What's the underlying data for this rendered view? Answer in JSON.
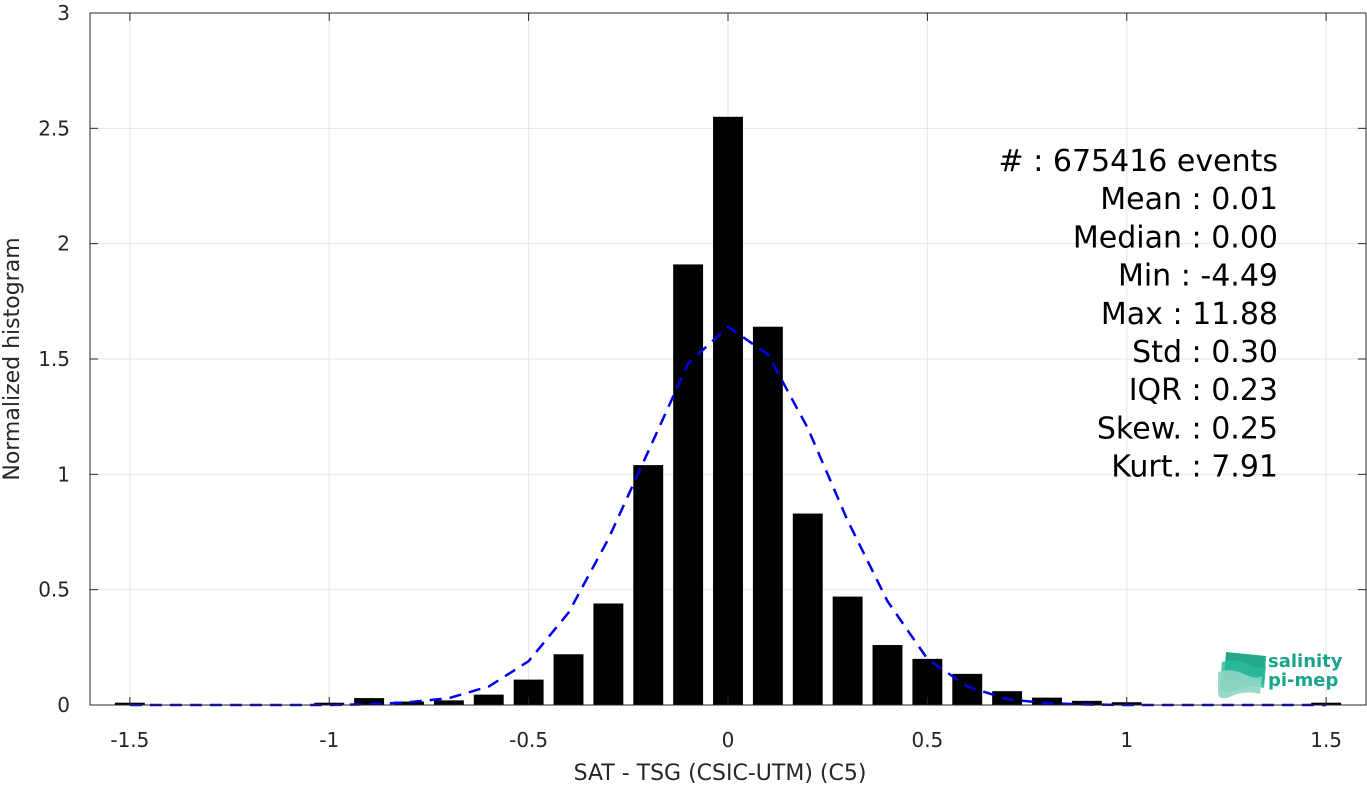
{
  "chart_data": {
    "type": "bar",
    "xlabel": "SAT - TSG (CSIC-UTM) (C5)",
    "ylabel": "Normalized histogram",
    "xlim": [
      -1.6,
      1.6
    ],
    "ylim": [
      0,
      3
    ],
    "xticks": [
      -1.5,
      -1,
      -0.5,
      0,
      0.5,
      1,
      1.5
    ],
    "xtick_labels": [
      "-1.5",
      "-1",
      "-0.5",
      "0",
      "0.5",
      "1",
      "1.5"
    ],
    "yticks": [
      0,
      0.5,
      1,
      1.5,
      2,
      2.5,
      3
    ],
    "ytick_labels": [
      "0",
      "0.5",
      "1",
      "1.5",
      "2",
      "2.5",
      "3"
    ],
    "grid": true,
    "bar_color": "#000000",
    "bar_width": 0.075,
    "bars": {
      "x": [
        -1.5,
        -1.0,
        -0.9,
        -0.8,
        -0.7,
        -0.6,
        -0.5,
        -0.4,
        -0.3,
        -0.2,
        -0.1,
        0.0,
        0.1,
        0.2,
        0.3,
        0.4,
        0.5,
        0.6,
        0.7,
        0.8,
        0.9,
        1.0,
        1.5
      ],
      "values": [
        0.01,
        0.01,
        0.03,
        0.015,
        0.02,
        0.045,
        0.11,
        0.22,
        0.44,
        1.04,
        1.91,
        2.55,
        1.64,
        0.83,
        0.47,
        0.26,
        0.2,
        0.135,
        0.06,
        0.032,
        0.018,
        0.012,
        0.01
      ]
    },
    "fit_curve": {
      "style": "dashed",
      "color": "#0000ee",
      "x": [
        -1.5,
        -1.4,
        -1.3,
        -1.2,
        -1.1,
        -1.0,
        -0.9,
        -0.8,
        -0.7,
        -0.6,
        -0.5,
        -0.4,
        -0.3,
        -0.2,
        -0.1,
        0.0,
        0.1,
        0.2,
        0.3,
        0.4,
        0.5,
        0.6,
        0.7,
        0.8,
        0.9,
        1.0,
        1.1,
        1.2,
        1.3,
        1.4,
        1.5
      ],
      "y": [
        0,
        0,
        0,
        0,
        0,
        0,
        0.003,
        0.012,
        0.03,
        0.08,
        0.19,
        0.4,
        0.72,
        1.1,
        1.48,
        1.64,
        1.52,
        1.2,
        0.8,
        0.45,
        0.2,
        0.08,
        0.025,
        0.008,
        0.002,
        0,
        0,
        0,
        0,
        0,
        0
      ]
    },
    "annotations": [
      "#  : 675416 events",
      "Mean : 0.01",
      "Median : 0.00",
      "Min : -4.49",
      "Max : 11.88",
      "Std : 0.30",
      "IQR : 0.23",
      "Skew. : 0.25",
      "Kurt. : 7.91"
    ]
  },
  "logo": {
    "line1": "salinity",
    "line2": "pi-mep"
  }
}
